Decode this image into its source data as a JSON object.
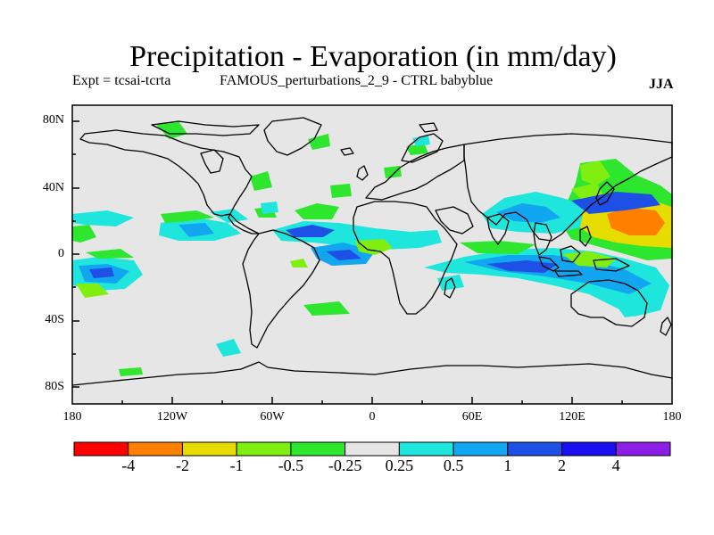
{
  "title": "Precipitation - Evaporation (in mm/day)",
  "subtitle": {
    "experiment": "Expt = tcsai-tcrta",
    "run": "FAMOUS_perturbations_2_9 - CTRL babyblue",
    "season": "JJA"
  },
  "lat_labels": [
    "80N",
    "40N",
    "0",
    "40S",
    "80S"
  ],
  "lon_labels": [
    "180",
    "120W",
    "60W",
    "0",
    "60E",
    "120E",
    "180"
  ],
  "colorbar": {
    "labels": [
      "-4",
      "-2",
      "-1",
      "-0.5",
      "-0.25",
      "0.25",
      "0.5",
      "1",
      "2",
      "4"
    ],
    "colors": [
      "#ff0000",
      "#ff7f00",
      "#e6dc00",
      "#80ee10",
      "#2de62d",
      "#e6e6e6",
      "#1ee6dc",
      "#12a5f0",
      "#1e50e6",
      "#1a0ff0",
      "#8c1ee6"
    ]
  },
  "colors": {
    "ocean_background": "#e6e6e6",
    "frame": "#000000"
  }
}
